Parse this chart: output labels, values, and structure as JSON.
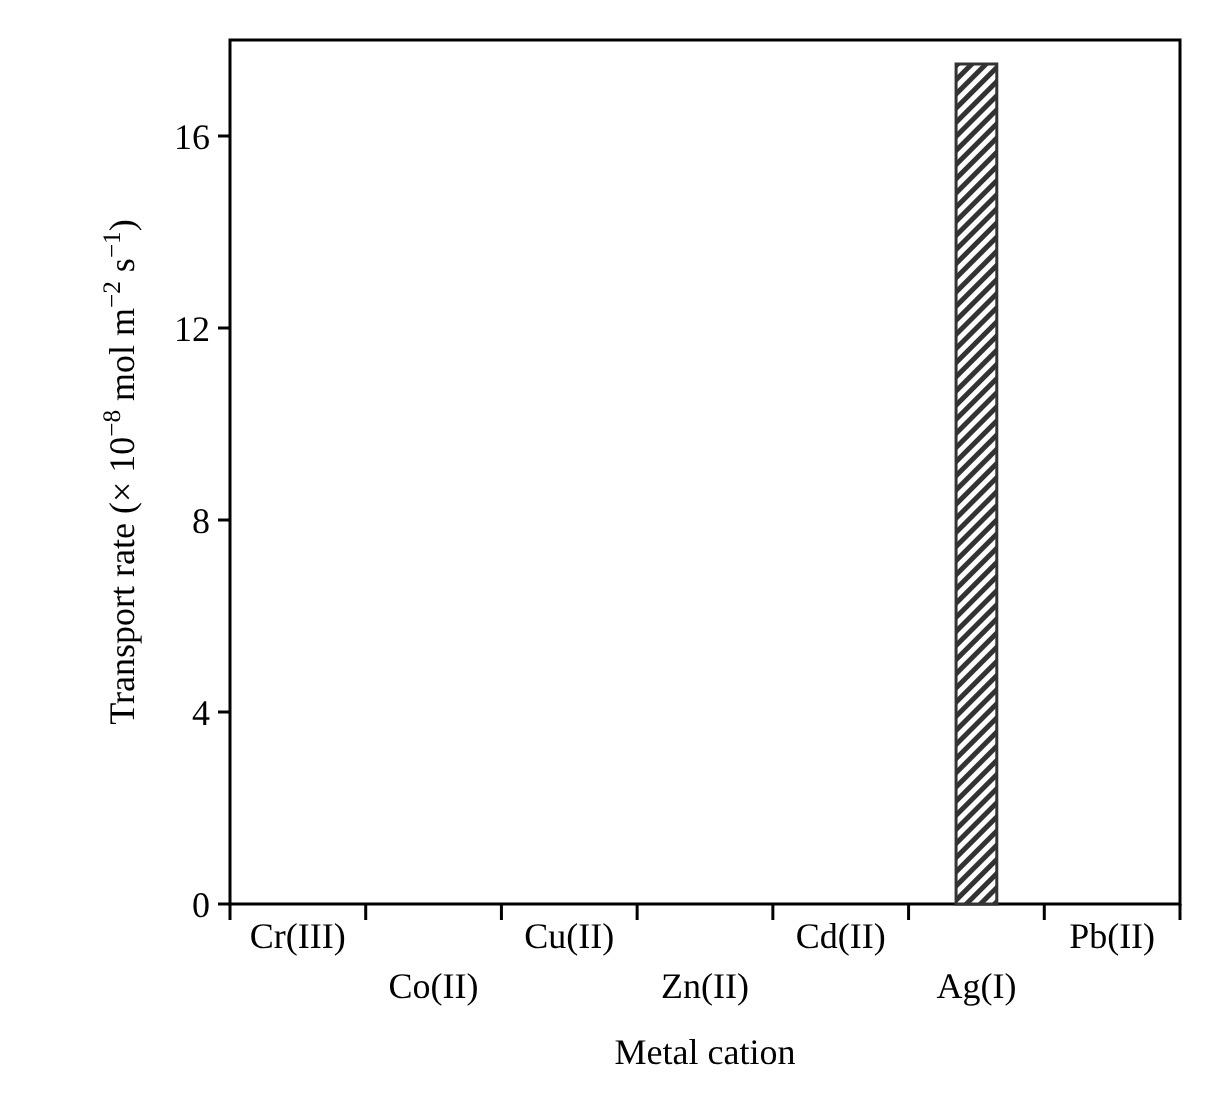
{
  "chart_data": {
    "type": "bar",
    "xlabel": "Metal cation",
    "ylabel": "Transport rate (× 10$^{−8}$ mol m$^{−2}$ s$^{−1}$)",
    "categories": [
      "Cr(III)",
      "Co(II)",
      "Cu(II)",
      "Zn(II)",
      "Cd(II)",
      "Ag(I)",
      "Pb(II)"
    ],
    "values": [
      0,
      0,
      0,
      0,
      0,
      17.5,
      0
    ],
    "color": "#333333",
    "ylim": [
      0,
      18
    ],
    "yticks": [
      0,
      4,
      8,
      12,
      16
    ],
    "grid": false
  }
}
